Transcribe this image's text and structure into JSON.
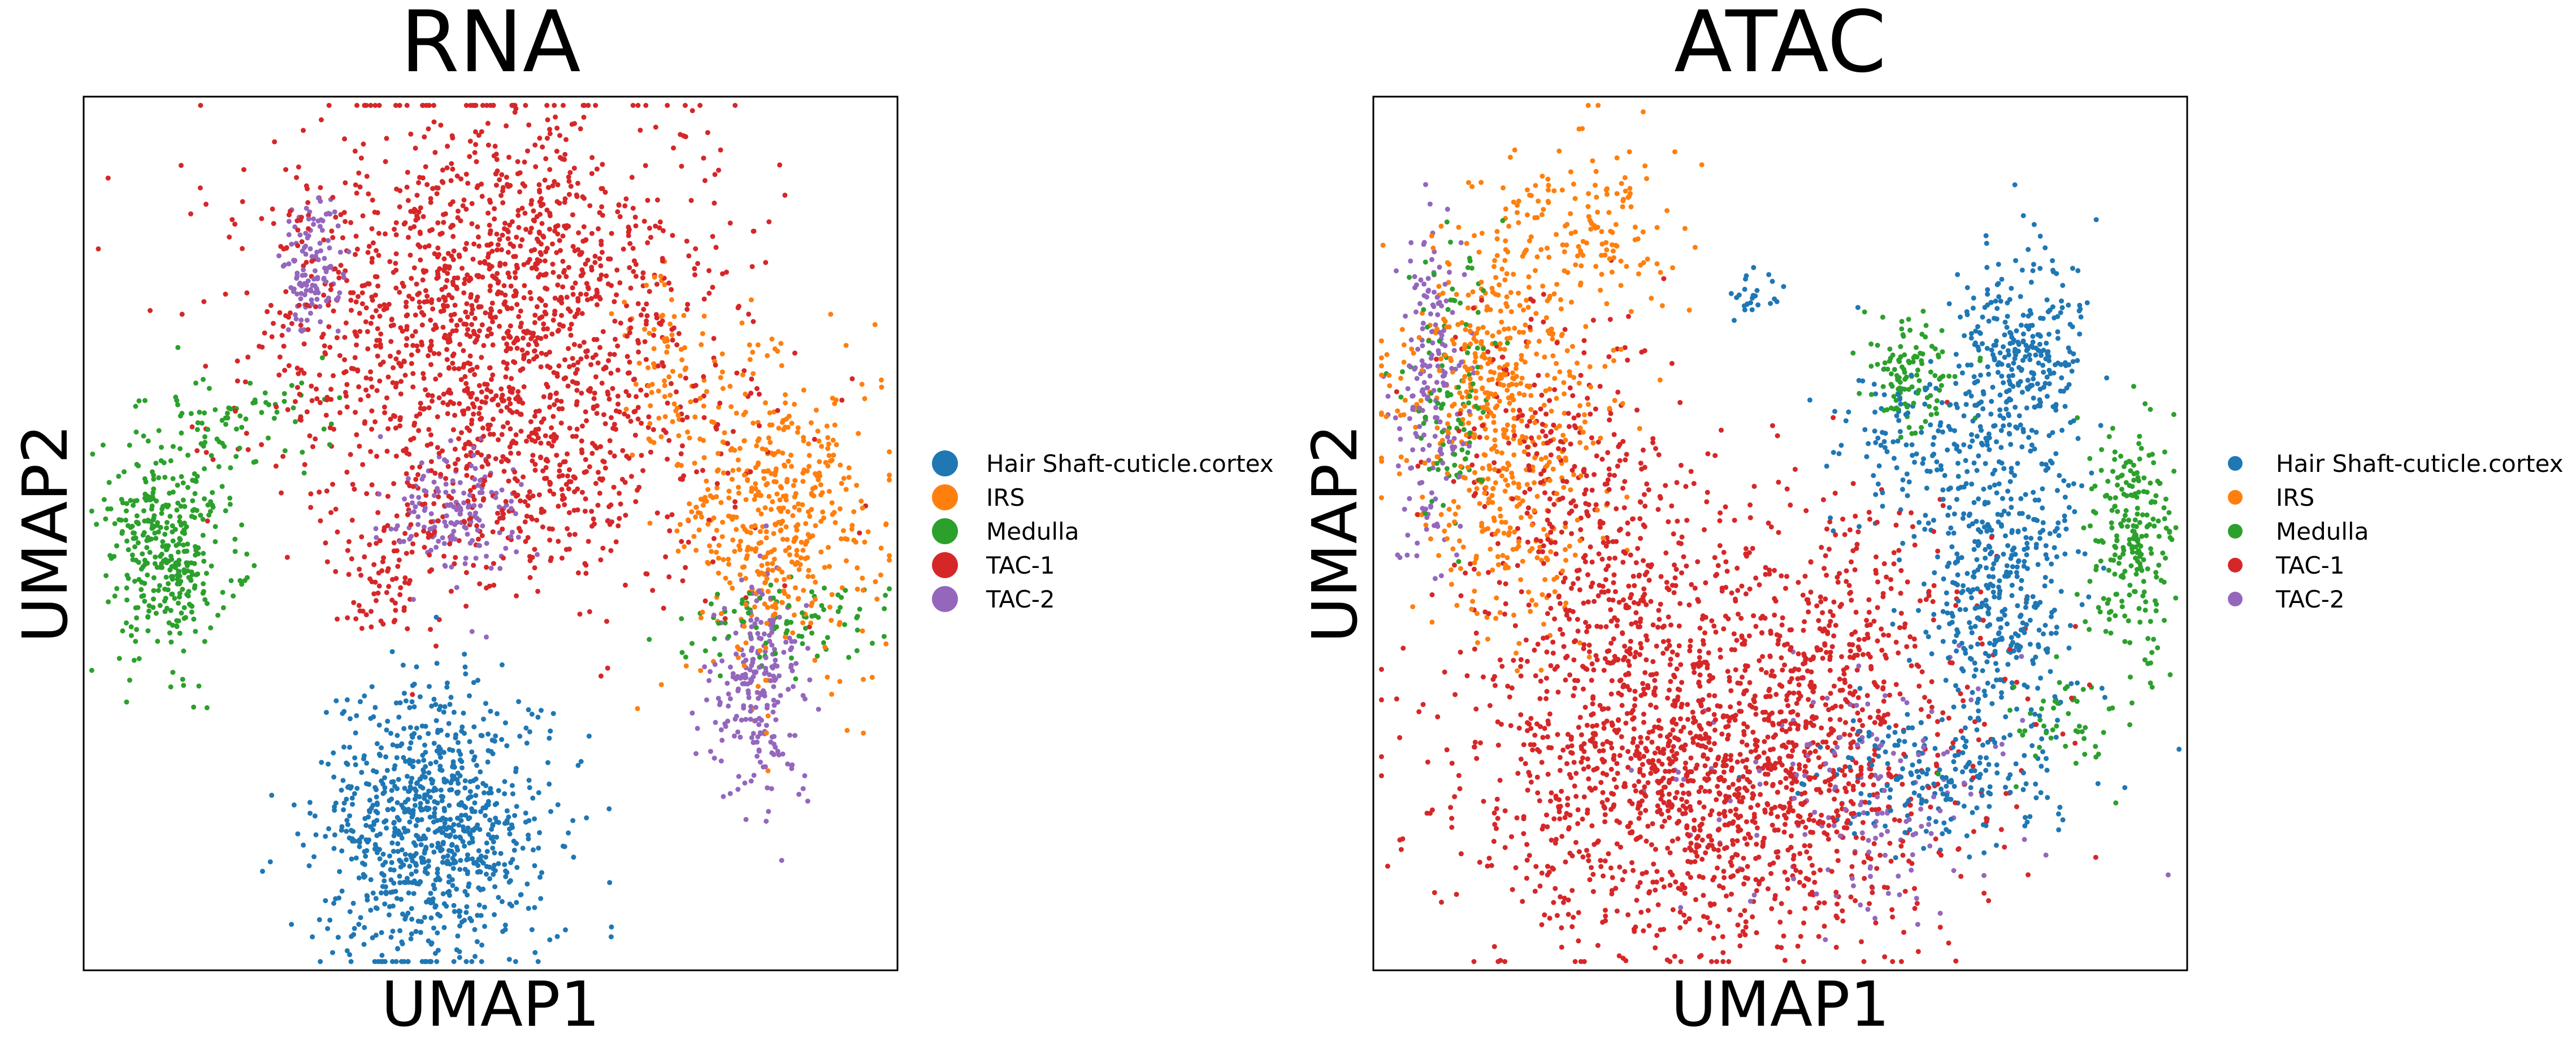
{
  "figure": {
    "background": "#ffffff"
  },
  "legend": {
    "entries": [
      {
        "label": "Hair Shaft-cuticle.cortex",
        "color": "#1f77b4"
      },
      {
        "label": "IRS",
        "color": "#ff7f0e"
      },
      {
        "label": "Medulla",
        "color": "#2ca02c"
      },
      {
        "label": "TAC-1",
        "color": "#d62728"
      },
      {
        "label": "TAC-2",
        "color": "#9467bd"
      }
    ]
  },
  "chart_data": [
    {
      "type": "scatter",
      "title": "RNA",
      "xlabel": "UMAP1",
      "ylabel": "UMAP2",
      "xlim": [
        0,
        100
      ],
      "ylim": [
        0,
        100
      ],
      "grid": false,
      "ticks_visible": false,
      "legend_position": "right",
      "series": [
        {
          "name": "Hair Shaft-cuticle.cortex",
          "color": "#1f77b4",
          "clusters": [
            {
              "cx": 43,
              "cy": 16,
              "sx": 7,
              "sy": 8,
              "n": 900
            }
          ]
        },
        {
          "name": "IRS",
          "color": "#ff7f0e",
          "clusters": [
            {
              "cx": 85,
              "cy": 52,
              "sx": 6,
              "sy": 9,
              "n": 500
            },
            {
              "cx": 72,
              "cy": 68,
              "sx": 3,
              "sy": 6,
              "n": 80
            }
          ]
        },
        {
          "name": "Medulla",
          "color": "#2ca02c",
          "clusters": [
            {
              "cx": 10,
              "cy": 49,
              "sx": 4,
              "sy": 6,
              "n": 380
            },
            {
              "cx": 21,
              "cy": 63,
              "sx": 6,
              "sy": 3,
              "n": 70
            },
            {
              "cx": 86,
              "cy": 40,
              "sx": 6,
              "sy": 2.5,
              "n": 90
            }
          ]
        },
        {
          "name": "TAC-1",
          "color": "#d62728",
          "clusters": [
            {
              "cx": 50,
              "cy": 76,
              "sx": 14,
              "sy": 12,
              "n": 1500
            },
            {
              "cx": 52,
              "cy": 58,
              "sx": 14,
              "sy": 8,
              "n": 400
            },
            {
              "cx": 37,
              "cy": 44,
              "sx": 2.5,
              "sy": 3,
              "n": 60
            }
          ]
        },
        {
          "name": "TAC-2",
          "color": "#9467bd",
          "clusters": [
            {
              "cx": 28,
              "cy": 80,
              "sx": 2,
              "sy": 4,
              "n": 120
            },
            {
              "cx": 46,
              "cy": 52,
              "sx": 4,
              "sy": 4,
              "n": 160
            },
            {
              "cx": 83,
              "cy": 33,
              "sx": 3,
              "sy": 6,
              "n": 240
            }
          ]
        }
      ]
    },
    {
      "type": "scatter",
      "title": "ATAC",
      "xlabel": "UMAP1",
      "ylabel": "UMAP2",
      "xlim": [
        0,
        100
      ],
      "ylim": [
        0,
        100
      ],
      "grid": false,
      "ticks_visible": false,
      "legend_position": "right",
      "series": [
        {
          "name": "Hair Shaft-cuticle.cortex",
          "color": "#1f77b4",
          "clusters": [
            {
              "cx": 80,
              "cy": 70,
              "sx": 4,
              "sy": 6,
              "n": 300
            },
            {
              "cx": 77,
              "cy": 45,
              "sx": 5,
              "sy": 9,
              "n": 450
            },
            {
              "cx": 67,
              "cy": 60,
              "sx": 5,
              "sy": 5,
              "n": 120
            },
            {
              "cx": 70,
              "cy": 22,
              "sx": 8,
              "sy": 4,
              "n": 200
            },
            {
              "cx": 47,
              "cy": 77,
              "sx": 2,
              "sy": 1.5,
              "n": 25
            }
          ]
        },
        {
          "name": "IRS",
          "color": "#ff7f0e",
          "clusters": [
            {
              "cx": 15,
              "cy": 67,
              "sx": 7,
              "sy": 8,
              "n": 450
            },
            {
              "cx": 25,
              "cy": 85,
              "sx": 6,
              "sy": 5,
              "n": 160
            },
            {
              "cx": 17,
              "cy": 48,
              "sx": 5,
              "sy": 6,
              "n": 130
            }
          ]
        },
        {
          "name": "Medulla",
          "color": "#2ca02c",
          "clusters": [
            {
              "cx": 93,
              "cy": 49,
              "sx": 2.5,
              "sy": 6,
              "n": 230
            },
            {
              "cx": 66,
              "cy": 68,
              "sx": 3,
              "sy": 3,
              "n": 120
            },
            {
              "cx": 10,
              "cy": 67,
              "sx": 3,
              "sy": 8,
              "n": 100
            },
            {
              "cx": 85,
              "cy": 28,
              "sx": 4,
              "sy": 3,
              "n": 50
            }
          ]
        },
        {
          "name": "TAC-1",
          "color": "#d62728",
          "clusters": [
            {
              "cx": 42,
              "cy": 22,
              "sx": 15,
              "sy": 10,
              "n": 1500
            },
            {
              "cx": 30,
              "cy": 42,
              "sx": 7,
              "sy": 10,
              "n": 350
            },
            {
              "cx": 55,
              "cy": 40,
              "sx": 9,
              "sy": 9,
              "n": 300
            },
            {
              "cx": 22,
              "cy": 60,
              "sx": 7,
              "sy": 9,
              "n": 200
            }
          ]
        },
        {
          "name": "TAC-2",
          "color": "#9467bd",
          "clusters": [
            {
              "cx": 7,
              "cy": 67,
              "sx": 2,
              "sy": 10,
              "n": 180
            },
            {
              "cx": 60,
              "cy": 20,
              "sx": 10,
              "sy": 7,
              "n": 160
            }
          ]
        }
      ]
    }
  ]
}
